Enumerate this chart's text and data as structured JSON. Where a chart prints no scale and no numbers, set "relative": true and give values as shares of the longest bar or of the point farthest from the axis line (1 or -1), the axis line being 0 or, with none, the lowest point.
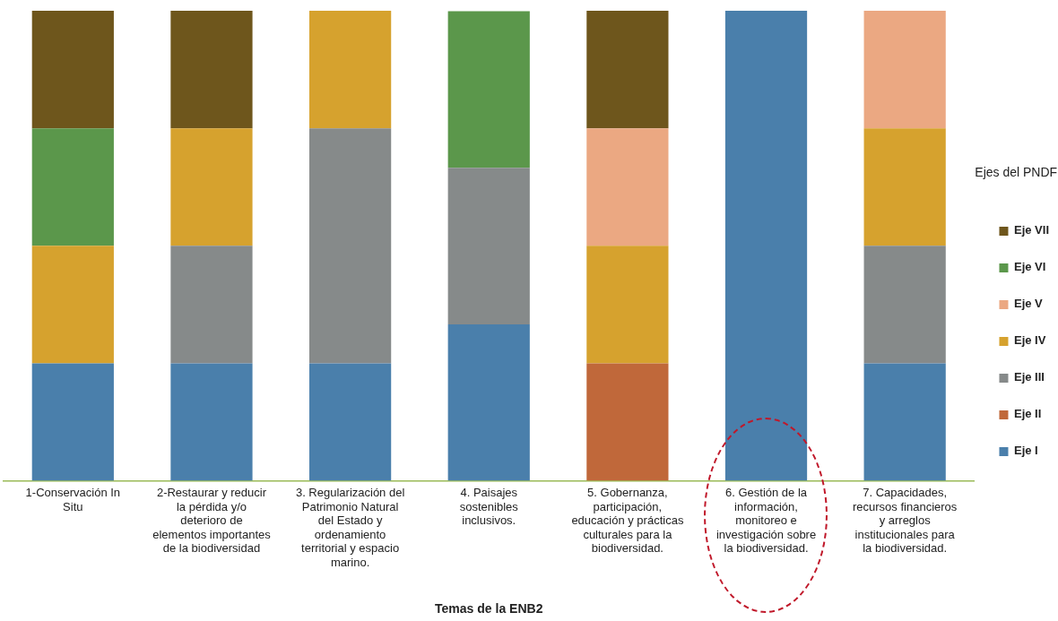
{
  "chart_data": {
    "type": "bar",
    "stacked": true,
    "relative": true,
    "xlabel": "Temas de la ENB2",
    "legend_title": "Ejes del PNDF",
    "legend": "right",
    "grid": false,
    "categories": [
      "1-Conservación In Situ",
      "2-Restaurar y reducir la pérdida y/o deterioro de elementos importantes de la biodiversidad",
      "3. Regularización del Patrimonio Natural del Estado y ordenamiento territorial y espacio marino.",
      "4. Paisajes sostenibles inclusivos.",
      "5. Gobernanza, participación, educación y prácticas culturales para la biodiversidad.",
      "6. Gestión de la información, monitoreo e investigación sobre la biodiversidad.",
      "7. Capacidades, recursos financieros y arreglos institucionales para la biodiversidad."
    ],
    "series": [
      {
        "name": "Eje I",
        "color": "#4a7fab",
        "values": [
          0.25,
          0.25,
          0.25,
          0.333,
          null,
          1,
          0.25
        ]
      },
      {
        "name": "Eje II",
        "color": "#c0683a",
        "values": [
          null,
          null,
          null,
          null,
          0.25,
          null,
          null
        ]
      },
      {
        "name": "Eje III",
        "color": "#868a8a",
        "values": [
          null,
          0.25,
          0.5,
          0.333,
          null,
          null,
          0.25
        ]
      },
      {
        "name": "Eje IV",
        "color": "#d6a22e",
        "values": [
          0.25,
          0.25,
          0.25,
          null,
          0.25,
          null,
          0.25
        ]
      },
      {
        "name": "Eje V",
        "color": "#eba882",
        "values": [
          null,
          null,
          null,
          null,
          0.25,
          null,
          0.25
        ]
      },
      {
        "name": "Eje VI",
        "color": "#5b974b",
        "values": [
          0.25,
          null,
          null,
          0.333,
          null,
          null,
          null
        ]
      },
      {
        "name": "Eje VII",
        "color": "#6e561c",
        "values": [
          0.25,
          0.25,
          null,
          null,
          0.25,
          null,
          null
        ]
      }
    ]
  }
}
